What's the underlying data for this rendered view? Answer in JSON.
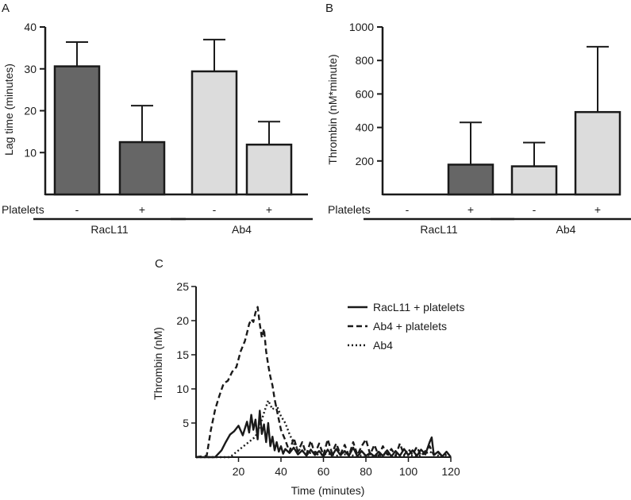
{
  "colors": {
    "dark_bar": "#666666",
    "light_bar": "#dcdcdc",
    "stroke": "#1a1a1a"
  },
  "chart_data": [
    {
      "panel": "A",
      "type": "bar",
      "ylabel": "Lag time (minutes)",
      "ylim": [
        0,
        40
      ],
      "yticks": [
        10,
        20,
        30,
        40
      ],
      "row_label": "Platelets",
      "categories": [
        "-",
        "+",
        "-",
        "+"
      ],
      "groups": [
        {
          "name": "RacL11",
          "bars": [
            0,
            1
          ]
        },
        {
          "name": "Ab4",
          "bars": [
            2,
            3
          ]
        }
      ],
      "values": [
        30.6,
        12.5,
        29.4,
        11.9
      ],
      "errors": [
        5.8,
        8.7,
        7.6,
        5.5
      ],
      "fills": [
        "dark",
        "dark",
        "light",
        "light"
      ]
    },
    {
      "panel": "B",
      "type": "bar",
      "ylabel": "Thrombin (nM*minute)",
      "ylim": [
        0,
        1000
      ],
      "yticks": [
        200,
        400,
        600,
        800,
        1000
      ],
      "row_label": "Platelets",
      "categories": [
        "-",
        "+",
        "-",
        "+"
      ],
      "groups": [
        {
          "name": "RacL11",
          "bars": [
            0,
            1
          ]
        },
        {
          "name": "Ab4",
          "bars": [
            2,
            3
          ]
        }
      ],
      "values": [
        0,
        178,
        168,
        492
      ],
      "errors": [
        0,
        252,
        142,
        390
      ],
      "fills": [
        "dark",
        "dark",
        "light",
        "light"
      ]
    },
    {
      "panel": "C",
      "type": "line",
      "xlabel": "Time (minutes)",
      "ylabel": "Thrombin (nM)",
      "xlim": [
        0,
        120
      ],
      "ylim": [
        0,
        25
      ],
      "xticks": [
        20,
        40,
        60,
        80,
        100,
        120
      ],
      "yticks": [
        5,
        10,
        15,
        20,
        25
      ],
      "series": [
        {
          "name": "RacL11 + platelets",
          "dash": "solid",
          "x": [
            0,
            9,
            12,
            14,
            16,
            18,
            20,
            22,
            24,
            25,
            26,
            27,
            28,
            29,
            30,
            31,
            32,
            33,
            34,
            35,
            36,
            37,
            38,
            39,
            40,
            41,
            42,
            44,
            46,
            48,
            50,
            52,
            54,
            56,
            58,
            60,
            62,
            64,
            66,
            68,
            70,
            72,
            74,
            76,
            78,
            80,
            82,
            84,
            86,
            88,
            90,
            92,
            94,
            96,
            98,
            100,
            102,
            104,
            106,
            108,
            110,
            111,
            112,
            114,
            116,
            118,
            120
          ],
          "y": [
            0,
            0,
            1,
            2.2,
            3.3,
            3.8,
            4.6,
            3.2,
            5.2,
            3.6,
            6.2,
            4,
            5.5,
            2.6,
            6.8,
            3.4,
            4.8,
            2.2,
            5,
            1.6,
            3,
            1,
            2.2,
            0.8,
            1.6,
            0.5,
            1.2,
            0.6,
            1.4,
            0.4,
            1,
            0.2,
            1.1,
            0.3,
            0.9,
            0.1,
            1.1,
            0.2,
            1.2,
            0.3,
            0.9,
            0.2,
            1.4,
            0.1,
            0.9,
            0.2,
            0.6,
            0.1,
            0.8,
            0.2,
            1,
            0.1,
            0.9,
            0.2,
            1.2,
            0.3,
            1,
            0.2,
            1.1,
            0.4,
            2.2,
            2.9,
            0.3,
            0.8,
            0.1,
            0.8,
            0
          ]
        },
        {
          "name": "Ab4 + platelets",
          "dash": "dashed",
          "x": [
            0,
            5,
            7,
            9,
            11,
            13,
            15,
            17,
            19,
            21,
            23,
            24,
            25,
            26,
            27,
            28,
            29,
            30,
            31,
            32,
            33,
            34,
            35,
            36,
            37,
            38,
            39,
            40,
            42,
            44,
            46,
            48,
            50,
            52,
            54,
            56,
            58,
            60,
            62,
            64,
            66,
            68,
            70,
            72,
            74,
            76,
            78,
            80,
            82,
            84,
            86,
            88,
            90,
            92,
            94,
            96,
            98,
            100,
            102,
            104,
            106,
            108,
            110,
            112,
            114,
            116,
            118
          ],
          "y": [
            0,
            0.2,
            4,
            7,
            9,
            10.8,
            11.2,
            12.5,
            13.2,
            15.5,
            17,
            18.2,
            19.5,
            20.2,
            19.8,
            21.2,
            22,
            19.5,
            17.5,
            18.8,
            15.5,
            13.5,
            11.8,
            10.5,
            8.5,
            7,
            5.5,
            4,
            2.5,
            0.8,
            2.8,
            0.8,
            2.2,
            0.4,
            2.4,
            0.5,
            2,
            0.3,
            2.6,
            0.6,
            2,
            0.4,
            1.8,
            0.2,
            2.2,
            0.3,
            1.6,
            2.6,
            0.4,
            1.8,
            0.2,
            1.6,
            0.4,
            1.2,
            0.2,
            2,
            0.3,
            1.2,
            0.4,
            1.5,
            0.2,
            0.9,
            1.6,
            0.3,
            0.7,
            0.1,
            0.4
          ]
        },
        {
          "name": "Ab4",
          "dash": "dotted",
          "x": [
            0,
            16,
            20,
            24,
            28,
            30,
            32,
            34,
            36,
            38,
            40,
            42,
            44,
            46,
            48,
            50,
            52,
            55,
            58,
            62,
            66,
            70,
            75,
            80,
            85,
            90,
            95,
            100,
            105,
            110,
            115,
            120
          ],
          "y": [
            0,
            0,
            1,
            2,
            3,
            4.5,
            6.5,
            8.3,
            7,
            7.6,
            6,
            5,
            3.4,
            2,
            1.2,
            0.9,
            0.5,
            0.7,
            0.3,
            0.5,
            0.2,
            0.4,
            0.2,
            0.3,
            0.2,
            0.4,
            0.1,
            0.3,
            0.2,
            0.8,
            0.1,
            0
          ]
        }
      ]
    }
  ]
}
